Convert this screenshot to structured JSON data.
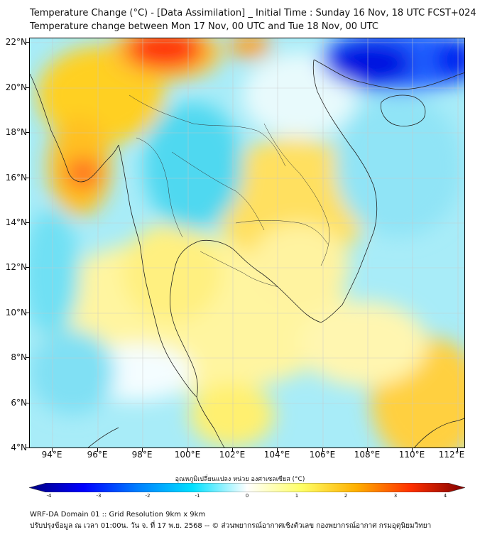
{
  "title_line1": "Temperature Change (°C) - [Data Assimilation] _ Initial Time : Sunday 16 Nov, 18 UTC FCST+024",
  "title_line2": "Temperature change between Mon 17 Nov, 00 UTC and Tue 18 Nov, 00 UTC",
  "lat_labels": [
    "22°N",
    "20°N",
    "18°N",
    "16°N",
    "14°N",
    "12°N",
    "10°N",
    "8°N",
    "6°N",
    "4°N"
  ],
  "lon_labels": [
    "94°E",
    "96°E",
    "98°E",
    "100°E",
    "102°E",
    "104°E",
    "106°E",
    "108°E",
    "110°E",
    "112°E"
  ],
  "colorbar": {
    "title": "อุณหภูมิเปลี่ยนแปลง หน่วย องศาเซลเซียส (°C)",
    "ticks": [
      "-4",
      "-3",
      "-2",
      "-1",
      "0",
      "1",
      "2",
      "3",
      "4"
    ],
    "colors": [
      "#00007f",
      "#0000ff",
      "#0080ff",
      "#00e0ff",
      "#ffffff",
      "#ffff66",
      "#ffb000",
      "#ff3000",
      "#7f0000"
    ]
  },
  "footer_line1": "WRF-DA Domain 01 :: Grid Resolution 9km x 9km",
  "footer_line2": "ปรับปรุงข้อมูล ณ เวลา 01:00น. วัน จ. ที่ 17 พ.ย. 2568 -- © ส่วนพยากรณ์อากาศเชิงตัวเลข กองพยากรณ์อากาศ กรมอุตุนิยมวิทยา"
}
